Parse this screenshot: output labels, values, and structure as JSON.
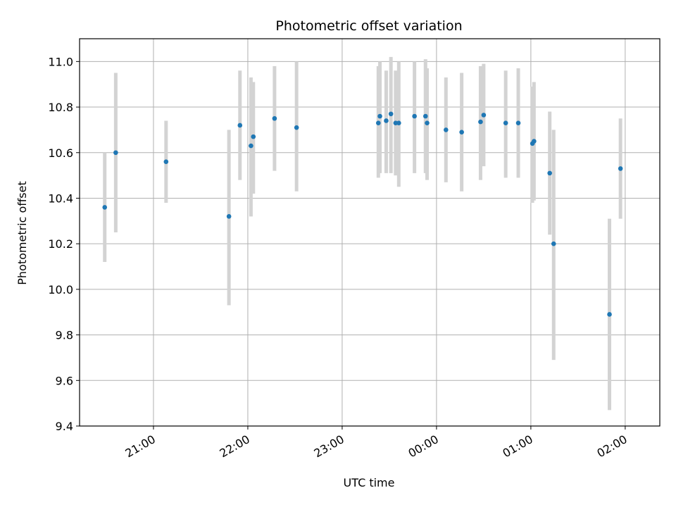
{
  "chart_data": {
    "type": "scatter",
    "title": "Photometric offset variation",
    "xlabel": "UTC time",
    "ylabel": "Photometric offset",
    "x_axis_type": "time",
    "x_unit": "minutes after 21:00 UTC (negative = before 21:00)",
    "xlim": [
      -47,
      322
    ],
    "ylim": [
      9.4,
      11.1
    ],
    "x_ticks": [
      {
        "value": 0,
        "label": "21:00"
      },
      {
        "value": 60,
        "label": "22:00"
      },
      {
        "value": 120,
        "label": "23:00"
      },
      {
        "value": 180,
        "label": "00:00"
      },
      {
        "value": 240,
        "label": "01:00"
      },
      {
        "value": 300,
        "label": "02:00"
      }
    ],
    "y_ticks": [
      9.4,
      9.6,
      9.8,
      10.0,
      10.2,
      10.4,
      10.6,
      10.8,
      11.0
    ],
    "y_tick_labels": [
      "9.4",
      "9.6",
      "9.8",
      "10.0",
      "10.2",
      "10.4",
      "10.6",
      "10.8",
      "11.0"
    ],
    "grid": true,
    "colors": {
      "point": "#1f77b4",
      "errorbar": "#d3d3d3",
      "grid": "#b0b0b0"
    },
    "series": [
      {
        "x": [
          -31,
          -24,
          8,
          48,
          55,
          62,
          63.5,
          77,
          91,
          143,
          144,
          148,
          151,
          154,
          156,
          166,
          173,
          174,
          186,
          196,
          208,
          210,
          224,
          232,
          241,
          242,
          252,
          254.5,
          290,
          297
        ],
        "y": [
          10.36,
          10.6,
          10.56,
          10.32,
          10.72,
          10.63,
          10.67,
          10.75,
          10.71,
          10.73,
          10.76,
          10.74,
          10.77,
          10.73,
          10.73,
          10.76,
          10.76,
          10.73,
          10.7,
          10.69,
          10.735,
          10.765,
          10.73,
          10.73,
          10.64,
          10.65,
          10.51,
          10.2,
          9.89,
          10.53
        ],
        "y_low": [
          10.12,
          10.25,
          10.38,
          9.93,
          10.48,
          10.32,
          10.42,
          10.52,
          10.43,
          10.49,
          10.51,
          10.51,
          10.51,
          10.5,
          10.45,
          10.51,
          10.51,
          10.48,
          10.47,
          10.43,
          10.48,
          10.54,
          10.49,
          10.49,
          10.38,
          10.39,
          10.24,
          9.69,
          9.47,
          10.31
        ],
        "y_high": [
          10.6,
          10.95,
          10.74,
          10.7,
          10.96,
          10.93,
          10.91,
          10.98,
          11.0,
          10.98,
          11.0,
          10.96,
          11.02,
          10.96,
          11.0,
          11.0,
          11.01,
          10.97,
          10.93,
          10.95,
          10.98,
          10.99,
          10.96,
          10.97,
          10.89,
          10.91,
          10.78,
          10.7,
          10.31,
          10.75
        ]
      }
    ]
  }
}
